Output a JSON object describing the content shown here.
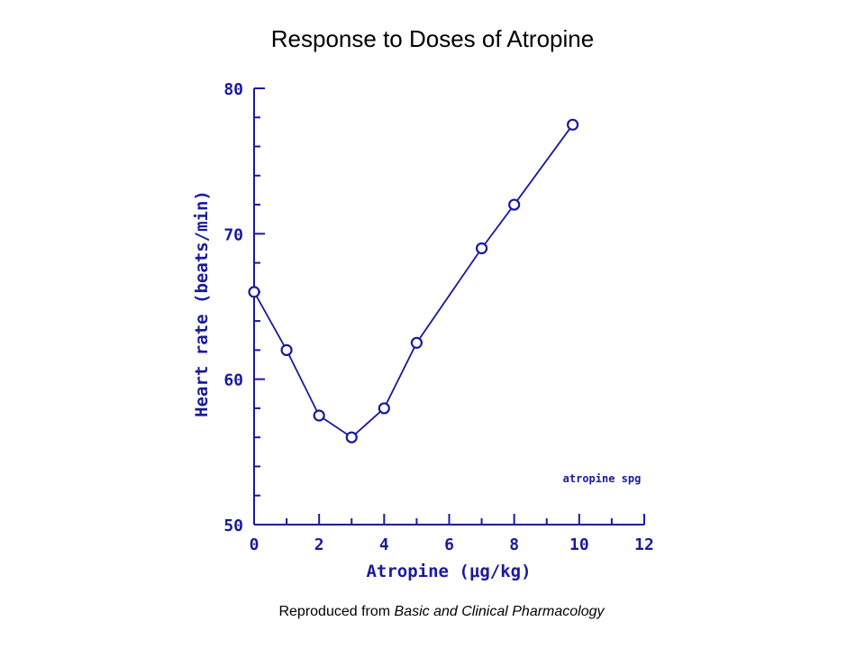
{
  "page": {
    "title": "Response to Doses of Atropine",
    "credit_prefix": "Reproduced from ",
    "credit_source": "Basic and Clinical Pharmacology"
  },
  "colors": {
    "plot": "#1a1a9c",
    "text": "#000000",
    "background": "#ffffff"
  },
  "chart_data": {
    "type": "line",
    "title": "",
    "xlabel": "Atropine (μg/kg)",
    "ylabel": "Heart rate (beats/min)",
    "xlim": [
      0,
      12
    ],
    "ylim": [
      50,
      80
    ],
    "xticks": [
      0,
      2,
      4,
      6,
      8,
      10,
      12
    ],
    "xtick_labels": [
      "0",
      "2",
      "4",
      "6",
      "8",
      "10",
      "12"
    ],
    "yticks": [
      50,
      60,
      70,
      80
    ],
    "ytick_labels": [
      "50",
      "60",
      "70",
      "80"
    ],
    "marker": "circle",
    "grid": false,
    "annotation": "atropine spg",
    "series": [
      {
        "x": [
          0,
          1,
          2,
          3,
          4,
          5,
          7,
          8,
          9.8
        ],
        "y": [
          66,
          62,
          57.5,
          56,
          58,
          62.5,
          69,
          72,
          77.5
        ]
      }
    ]
  }
}
